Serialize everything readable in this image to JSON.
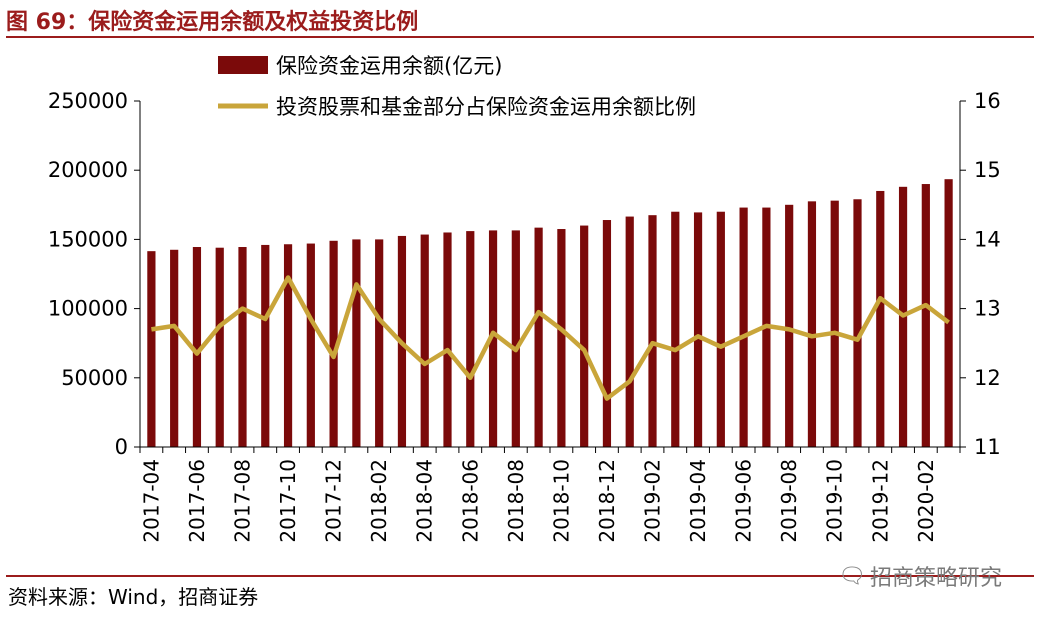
{
  "figure": {
    "title": "图 69：保险资金运用余额及权益投资比例",
    "source": "资料来源：Wind，招商证券",
    "watermark": "招商策略研究",
    "watermark_icon": "wechat-icon"
  },
  "colors": {
    "title": "#9b1c1c",
    "bar": "#7b0a0a",
    "line": "#c9a53a",
    "rule": "#9b1c1c"
  },
  "chart_data": {
    "type": "bar+line",
    "title": "",
    "x_tick_labels": [
      "2017-04",
      "2017-06",
      "2017-08",
      "2017-10",
      "2017-12",
      "2018-02",
      "2018-04",
      "2018-06",
      "2018-08",
      "2018-10",
      "2018-12",
      "2019-02",
      "2019-04",
      "2019-06",
      "2019-08",
      "2019-10",
      "2019-12",
      "2020-02"
    ],
    "x": [
      "2017-04",
      "2017-05",
      "2017-06",
      "2017-07",
      "2017-08",
      "2017-09",
      "2017-10",
      "2017-11",
      "2017-12",
      "2018-01",
      "2018-02",
      "2018-03",
      "2018-04",
      "2018-05",
      "2018-06",
      "2018-07",
      "2018-08",
      "2018-09",
      "2018-10",
      "2018-11",
      "2018-12",
      "2019-01",
      "2019-02",
      "2019-03",
      "2019-04",
      "2019-05",
      "2019-06",
      "2019-07",
      "2019-08",
      "2019-09",
      "2019-10",
      "2019-11",
      "2019-12",
      "2020-01",
      "2020-02",
      "2020-03"
    ],
    "series": [
      {
        "name": "保险资金运用余额(亿元)",
        "type": "bar",
        "axis": "left",
        "values": [
          141500,
          142500,
          144500,
          144000,
          144500,
          146000,
          146500,
          147000,
          149000,
          150000,
          150000,
          152500,
          153500,
          155000,
          156000,
          156500,
          156500,
          158500,
          157500,
          160000,
          164000,
          166500,
          167500,
          170000,
          169500,
          170000,
          173000,
          173000,
          175000,
          177500,
          178000,
          179000,
          185000,
          188000,
          190000,
          193500
        ]
      },
      {
        "name": "投资股票和基金部分占保险资金运用余额比例",
        "type": "line",
        "axis": "right",
        "values": [
          12.7,
          12.75,
          12.35,
          12.75,
          13.0,
          12.85,
          13.45,
          12.85,
          12.3,
          13.35,
          12.85,
          12.5,
          12.2,
          12.4,
          12.0,
          12.65,
          12.4,
          12.95,
          12.7,
          12.4,
          11.7,
          11.95,
          12.5,
          12.4,
          12.6,
          12.45,
          12.6,
          12.75,
          12.7,
          12.6,
          12.65,
          12.55,
          13.15,
          12.9,
          13.05,
          12.8
        ]
      }
    ],
    "y_left": {
      "lim": [
        0,
        250000
      ],
      "ticks": [
        0,
        50000,
        100000,
        150000,
        200000,
        250000
      ]
    },
    "y_right": {
      "lim": [
        11,
        16
      ],
      "ticks": [
        11,
        12,
        13,
        14,
        15,
        16
      ]
    },
    "legend": {
      "position": "top",
      "entries": [
        "保险资金运用余额(亿元)",
        "投资股票和基金部分占保险资金运用余额比例"
      ]
    },
    "grid": false
  }
}
